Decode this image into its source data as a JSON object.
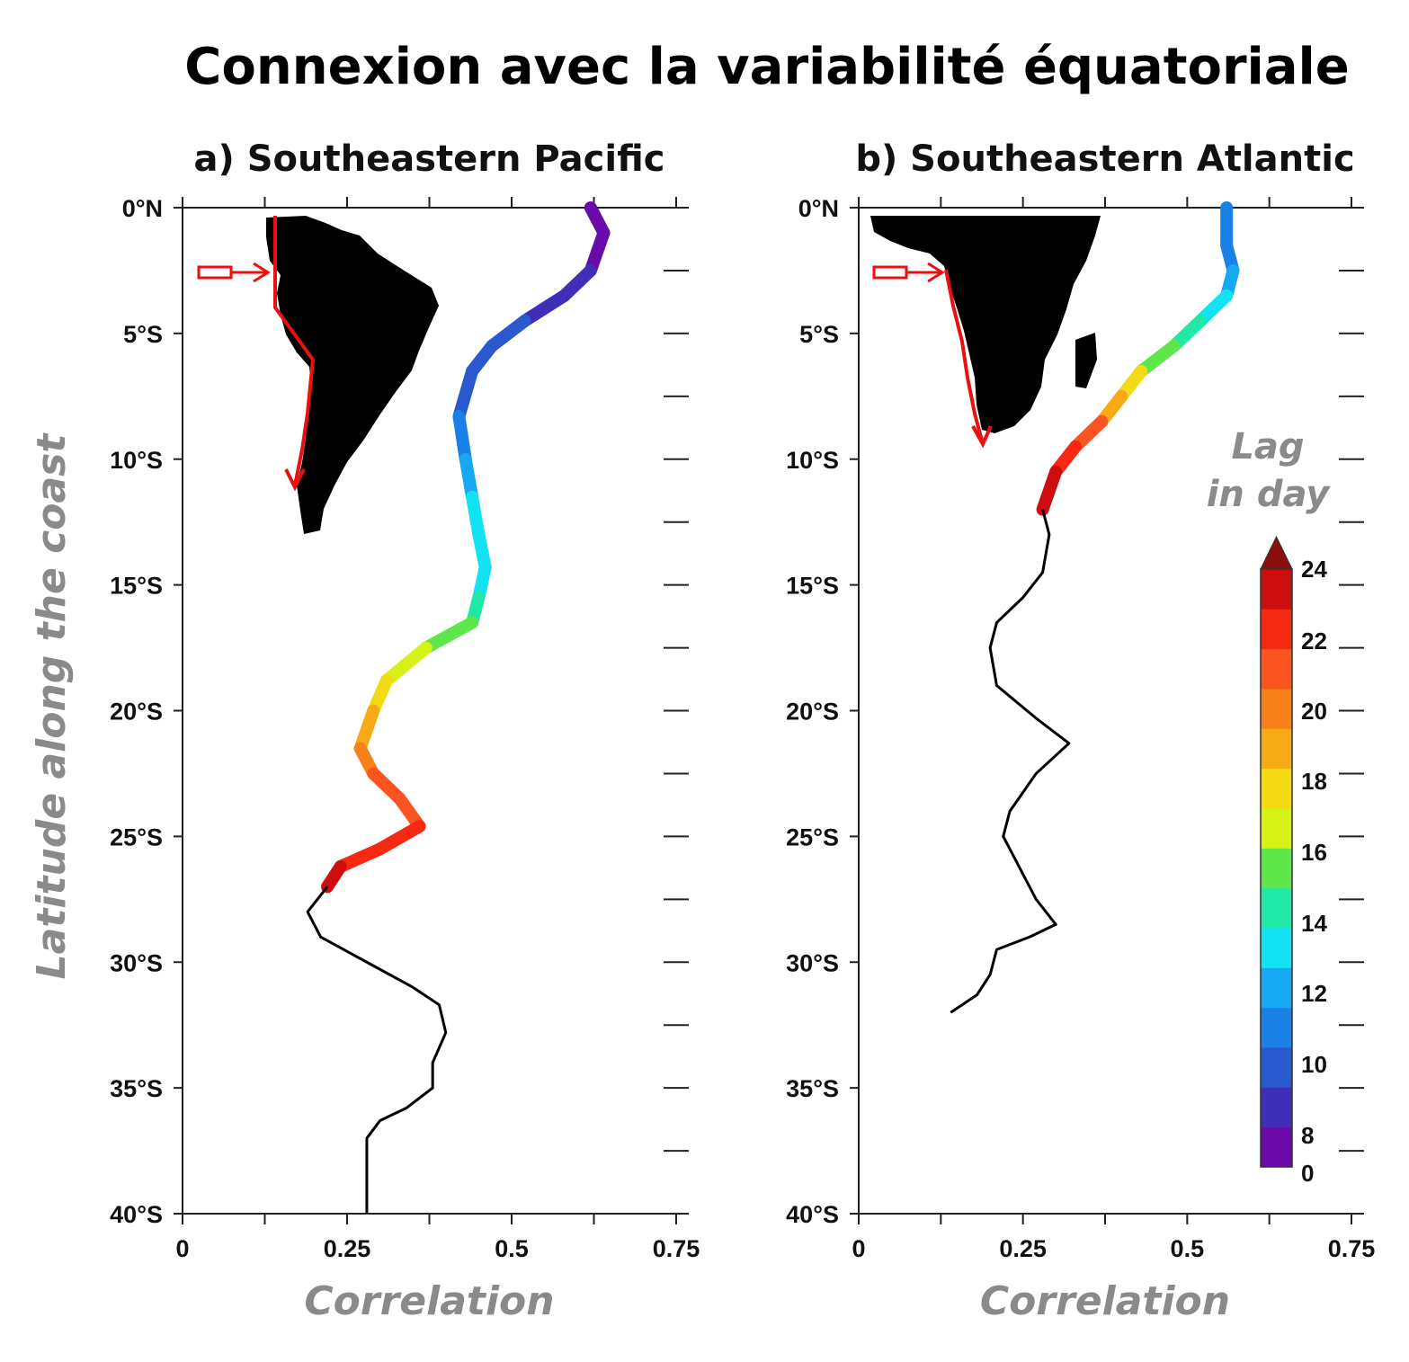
{
  "title": "Connexion avec la variabilité équatoriale",
  "colorbar": {
    "title_line1": "Lag",
    "title_line2": "in day",
    "tick_labels": [
      "24",
      "22",
      "20",
      "18",
      "16",
      "14",
      "12",
      "10",
      "8",
      "0"
    ],
    "colors": [
      "#6a0aa8",
      "#3f2eb8",
      "#2a58cf",
      "#1a80e6",
      "#16a8f2",
      "#12e2f2",
      "#20e8a6",
      "#5ee64a",
      "#d6f214",
      "#f3da12",
      "#f6aa14",
      "#f8801a",
      "#fa5520",
      "#f52812",
      "#cd0e0e"
    ],
    "extend_color": "#8b0e0e"
  },
  "chart_data": [
    {
      "type": "line",
      "title": "a) Southeastern Pacific",
      "xlabel": "Correlation",
      "ylabel": "Latitude along the coast",
      "xlim": [
        0,
        0.75
      ],
      "ylim": [
        -40,
        0
      ],
      "xticks": [
        "0",
        "0.25",
        "0.5",
        "0.75"
      ],
      "yticks": [
        "0°N",
        "5°S",
        "10°S",
        "15°S",
        "20°S",
        "25°S",
        "30°S",
        "35°S",
        "40°S"
      ],
      "inset_map": "South America with red arrow along west coast",
      "series": [
        {
          "colored_by": "lag_days",
          "points": [
            {
              "lat": 0,
              "corr": 0.62,
              "lag": 7
            },
            {
              "lat": -1,
              "corr": 0.64,
              "lag": 7
            },
            {
              "lat": -2.5,
              "corr": 0.62,
              "lag": 8
            },
            {
              "lat": -3.5,
              "corr": 0.58,
              "lag": 8
            },
            {
              "lat": -4.5,
              "corr": 0.52,
              "lag": 9
            },
            {
              "lat": -5.5,
              "corr": 0.47,
              "lag": 9
            },
            {
              "lat": -6.5,
              "corr": 0.44,
              "lag": 10
            },
            {
              "lat": -8.3,
              "corr": 0.42,
              "lag": 10
            },
            {
              "lat": -10,
              "corr": 0.43,
              "lag": 11
            },
            {
              "lat": -11.5,
              "corr": 0.44,
              "lag": 12
            },
            {
              "lat": -13,
              "corr": 0.45,
              "lag": 13
            },
            {
              "lat": -14.3,
              "corr": 0.46,
              "lag": 13
            },
            {
              "lat": -15.5,
              "corr": 0.45,
              "lag": 14
            },
            {
              "lat": -16.5,
              "corr": 0.44,
              "lag": 15
            },
            {
              "lat": -17.5,
              "corr": 0.37,
              "lag": 16
            },
            {
              "lat": -18.8,
              "corr": 0.31,
              "lag": 17
            },
            {
              "lat": -20,
              "corr": 0.29,
              "lag": 19
            },
            {
              "lat": -21.5,
              "corr": 0.27,
              "lag": 20
            },
            {
              "lat": -22.5,
              "corr": 0.29,
              "lag": 21
            },
            {
              "lat": -23.5,
              "corr": 0.33,
              "lag": 21
            },
            {
              "lat": -24.6,
              "corr": 0.36,
              "lag": 22
            },
            {
              "lat": -25.5,
              "corr": 0.3,
              "lag": 23
            },
            {
              "lat": -26.2,
              "corr": 0.24,
              "lag": 23
            },
            {
              "lat": -27,
              "corr": 0.22,
              "lag": 24
            }
          ]
        },
        {
          "colored_by": "none",
          "points": [
            {
              "lat": -27,
              "corr": 0.22
            },
            {
              "lat": -28,
              "corr": 0.19
            },
            {
              "lat": -29,
              "corr": 0.21
            },
            {
              "lat": -30,
              "corr": 0.28
            },
            {
              "lat": -31,
              "corr": 0.35
            },
            {
              "lat": -31.7,
              "corr": 0.39
            },
            {
              "lat": -32.8,
              "corr": 0.4
            },
            {
              "lat": -34,
              "corr": 0.38
            },
            {
              "lat": -35,
              "corr": 0.38
            },
            {
              "lat": -35.8,
              "corr": 0.34
            },
            {
              "lat": -36.3,
              "corr": 0.3
            },
            {
              "lat": -37,
              "corr": 0.28
            },
            {
              "lat": -38.5,
              "corr": 0.28
            },
            {
              "lat": -40,
              "corr": 0.28
            }
          ]
        }
      ]
    },
    {
      "type": "line",
      "title": "b) Southeastern Atlantic",
      "xlabel": "Correlation",
      "xlim": [
        0,
        0.75
      ],
      "ylim": [
        -40,
        0
      ],
      "xticks": [
        "0",
        "0.25",
        "0.5",
        "0.75"
      ],
      "yticks": [
        "0°N",
        "5°S",
        "10°S",
        "15°S",
        "20°S",
        "25°S",
        "30°S",
        "35°S",
        "40°S"
      ],
      "inset_map": "Africa with red arrow along west coast",
      "series": [
        {
          "colored_by": "lag_days",
          "points": [
            {
              "lat": 0,
              "corr": 0.56,
              "lag": 11
            },
            {
              "lat": -1.5,
              "corr": 0.56,
              "lag": 11
            },
            {
              "lat": -2.5,
              "corr": 0.57,
              "lag": 11
            },
            {
              "lat": -3.5,
              "corr": 0.56,
              "lag": 12
            },
            {
              "lat": -4.5,
              "corr": 0.52,
              "lag": 14
            },
            {
              "lat": -5.5,
              "corr": 0.48,
              "lag": 15
            },
            {
              "lat": -6.5,
              "corr": 0.43,
              "lag": 17
            },
            {
              "lat": -7.5,
              "corr": 0.4,
              "lag": 18
            },
            {
              "lat": -8.5,
              "corr": 0.37,
              "lag": 20
            },
            {
              "lat": -9.5,
              "corr": 0.33,
              "lag": 22
            },
            {
              "lat": -10.5,
              "corr": 0.3,
              "lag": 23
            },
            {
              "lat": -12,
              "corr": 0.28,
              "lag": 24
            }
          ]
        },
        {
          "colored_by": "none",
          "points": [
            {
              "lat": -12,
              "corr": 0.28
            },
            {
              "lat": -13,
              "corr": 0.29
            },
            {
              "lat": -14.5,
              "corr": 0.28
            },
            {
              "lat": -15.5,
              "corr": 0.25
            },
            {
              "lat": -16.5,
              "corr": 0.21
            },
            {
              "lat": -17.5,
              "corr": 0.2
            },
            {
              "lat": -19,
              "corr": 0.21
            },
            {
              "lat": -20.3,
              "corr": 0.27
            },
            {
              "lat": -21.3,
              "corr": 0.32
            },
            {
              "lat": -22.5,
              "corr": 0.27
            },
            {
              "lat": -24,
              "corr": 0.23
            },
            {
              "lat": -25,
              "corr": 0.22
            },
            {
              "lat": -26,
              "corr": 0.24
            },
            {
              "lat": -27.5,
              "corr": 0.27
            },
            {
              "lat": -28.5,
              "corr": 0.3
            },
            {
              "lat": -29,
              "corr": 0.26
            },
            {
              "lat": -29.5,
              "corr": 0.21
            },
            {
              "lat": -30.5,
              "corr": 0.2
            },
            {
              "lat": -31.3,
              "corr": 0.18
            },
            {
              "lat": -32,
              "corr": 0.14
            }
          ]
        }
      ]
    }
  ]
}
